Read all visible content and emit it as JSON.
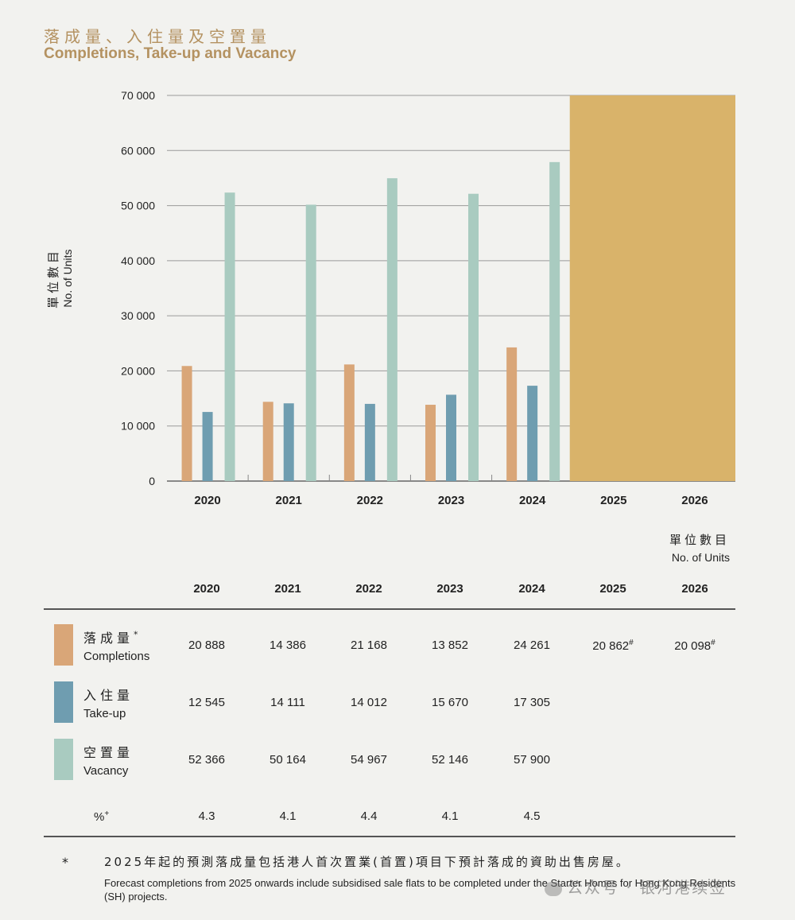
{
  "header": {
    "title_zh": "落成量、入住量及空置量",
    "title_en": "Completions, Take-up and Vacancy"
  },
  "chart_data": {
    "type": "bar",
    "categories": [
      "2020",
      "2021",
      "2022",
      "2023",
      "2024",
      "2025",
      "2026"
    ],
    "ylabel_zh": "單位數目",
    "ylabel_en": "No. of Units",
    "ylim": [
      0,
      70000
    ],
    "yticks": [
      0,
      10000,
      20000,
      30000,
      40000,
      50000,
      60000,
      70000
    ],
    "ytick_labels": [
      "0",
      "10 000",
      "20 000",
      "30 000",
      "40 000",
      "50 000",
      "60 000",
      "70 000"
    ],
    "grid": true,
    "series": [
      {
        "name": "Completions",
        "color": "#d9a678",
        "values": [
          20888,
          14386,
          21168,
          13852,
          24261,
          null,
          null
        ]
      },
      {
        "name": "Take-up",
        "color": "#6f9db0",
        "values": [
          12545,
          14111,
          14012,
          15670,
          17305,
          null,
          null
        ]
      },
      {
        "name": "Vacancy",
        "color": "#a9cbc0",
        "values": [
          52366,
          50164,
          54967,
          52146,
          57900,
          null,
          null
        ]
      }
    ],
    "forecast_block": {
      "color": "#d9b36a",
      "categories": [
        "2025",
        "2026"
      ],
      "level": 70000
    }
  },
  "table": {
    "unit_zh": "單位數目",
    "unit_en": "No. of Units",
    "years": [
      "2020",
      "2021",
      "2022",
      "2023",
      "2024",
      "2025",
      "2026"
    ],
    "rows": [
      {
        "label_zh": "落成量",
        "mark": "*",
        "label_en": "Completions",
        "color": "#d9a678",
        "cells": [
          "20 888",
          "14 386",
          "21 168",
          "13 852",
          "24 261",
          "20 862",
          "20 098"
        ],
        "cell_marks": [
          "",
          "",
          "",
          "",
          "",
          "#",
          "#"
        ]
      },
      {
        "label_zh": "入住量",
        "mark": "",
        "label_en": "Take-up",
        "color": "#6f9db0",
        "cells": [
          "12 545",
          "14 111",
          "14 012",
          "15 670",
          "17 305",
          "",
          ""
        ],
        "cell_marks": [
          "",
          "",
          "",
          "",
          "",
          "",
          ""
        ]
      },
      {
        "label_zh": "空置量",
        "mark": "",
        "label_en": "Vacancy",
        "color": "#a9cbc0",
        "cells": [
          "52 366",
          "50 164",
          "54 967",
          "52 146",
          "57 900",
          "",
          ""
        ],
        "cell_marks": [
          "",
          "",
          "",
          "",
          "",
          "",
          ""
        ]
      }
    ],
    "pct_label": "%",
    "pct_mark": "+",
    "pct_values": [
      "4.3",
      "4.1",
      "4.4",
      "4.1",
      "4.5",
      "",
      ""
    ]
  },
  "notes": {
    "star": "*",
    "zh": "2025年起的預測落成量包括港人首次置業(首置)項目下預計落成的資助出售房屋。",
    "en": "Forecast completions from 2025 onwards include subsidised sale flats to be completed under the Starter Homes for Hong Kong Residents (SH) projects."
  },
  "watermark": "公众号 · 银河港续签"
}
